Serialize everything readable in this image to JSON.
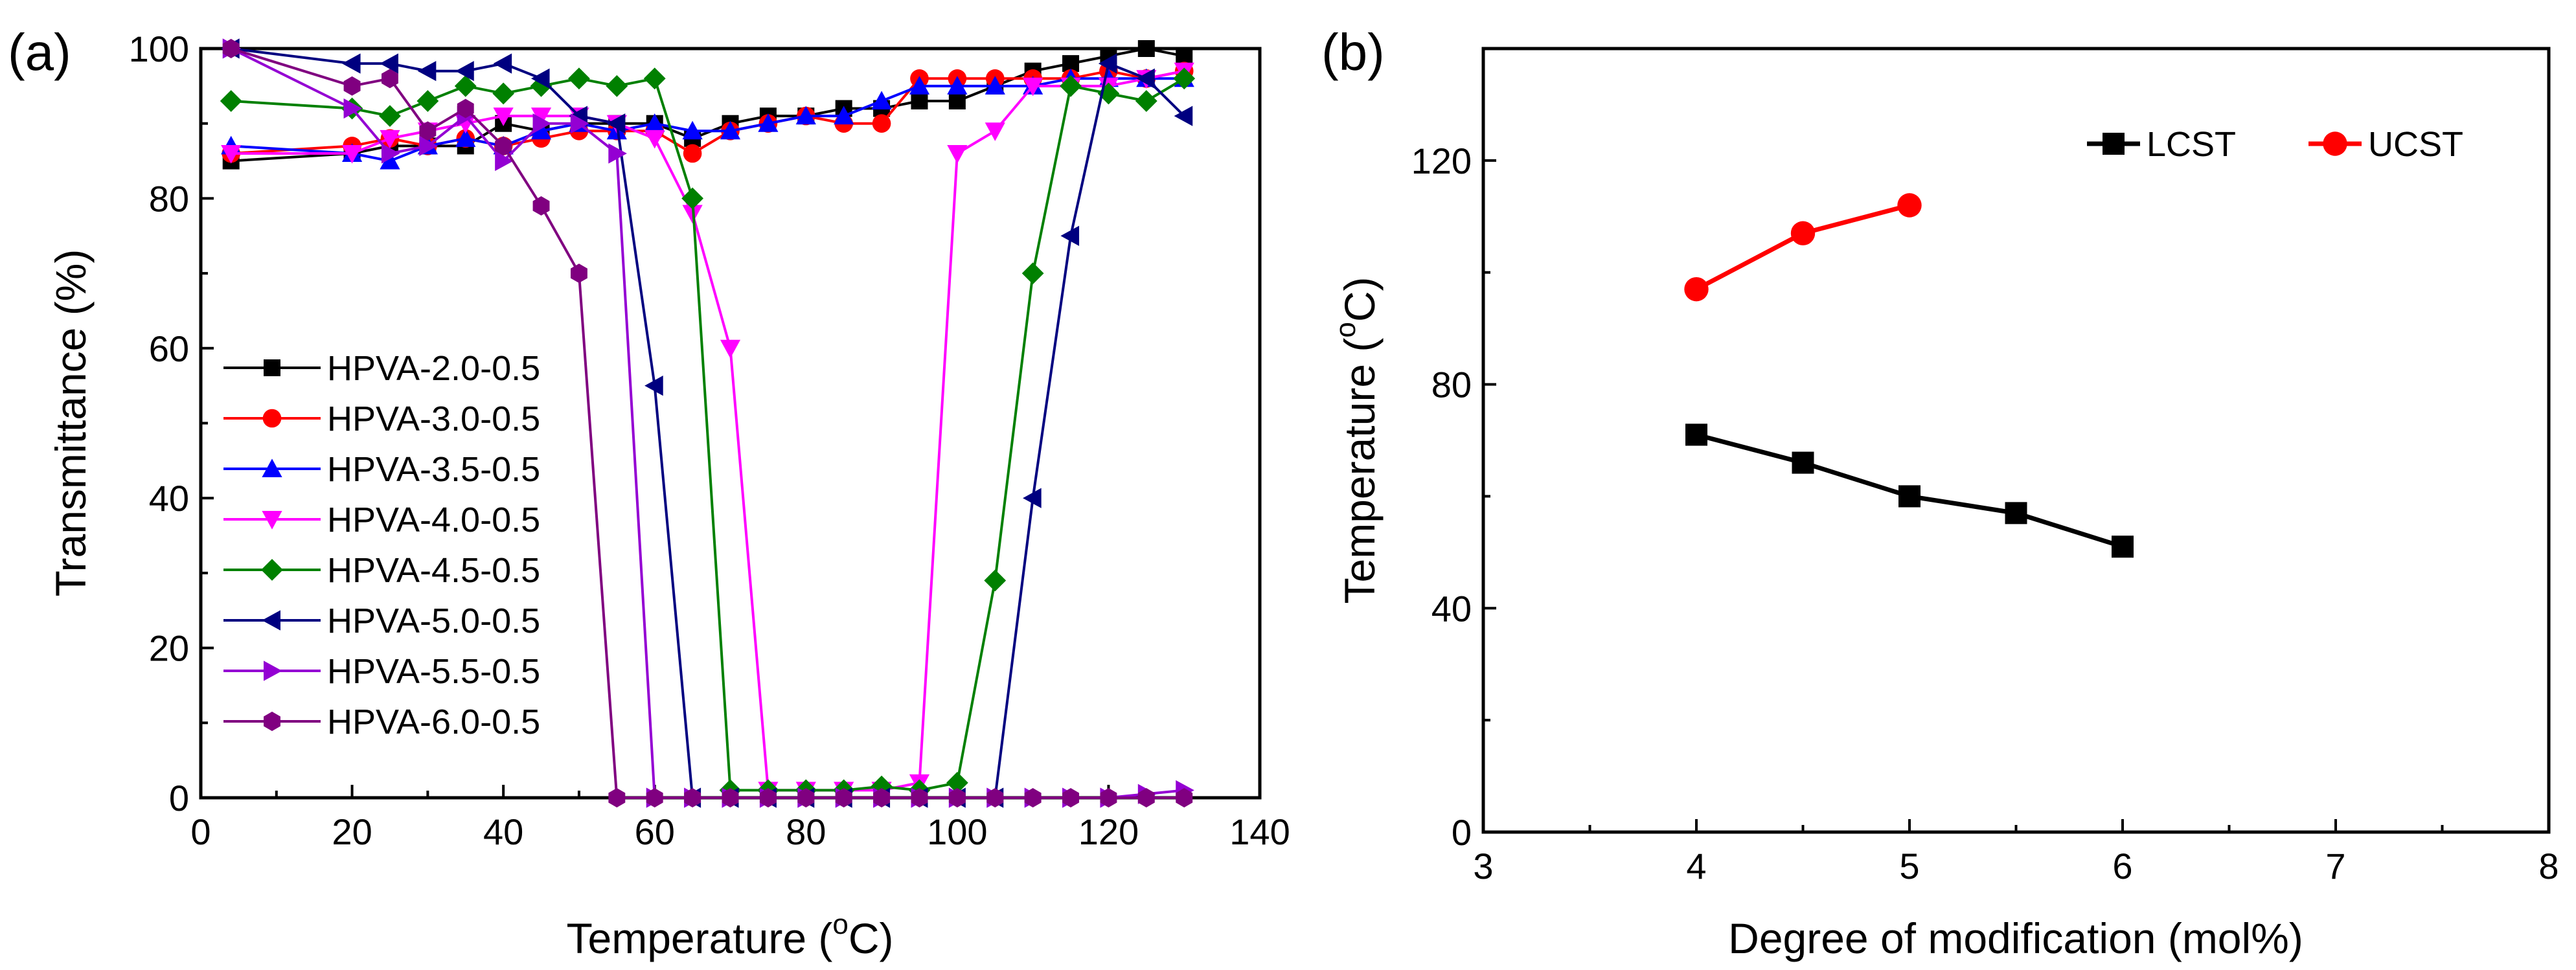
{
  "chart_data": [
    {
      "type": "line",
      "panel_label": "(a)",
      "title": "",
      "xlabel": "Temperature (°C)",
      "xlabel_main": "Temperature (",
      "xlabel_sup": "o",
      "xlabel_unit": "C)",
      "ylabel": "Transmittance (%)",
      "xlim": [
        0,
        140
      ],
      "ylim": [
        0,
        100
      ],
      "xticks": [
        0,
        20,
        40,
        60,
        80,
        100,
        120,
        140
      ],
      "yticks": [
        0,
        20,
        40,
        60,
        80,
        100
      ],
      "grid": false,
      "legend_position": "left-middle",
      "series": [
        {
          "name": "HPVA-2.0-0.5",
          "color": "#000000",
          "marker": "square",
          "x": [
            4,
            20,
            25,
            30,
            35,
            40,
            45,
            50,
            55,
            60,
            65,
            70,
            75,
            80,
            85,
            90,
            95,
            100,
            105,
            110,
            115,
            120,
            125,
            130
          ],
          "y": [
            85,
            86,
            87,
            87,
            87,
            90,
            89,
            90,
            90,
            90,
            88,
            90,
            91,
            91,
            92,
            92,
            93,
            93,
            95,
            97,
            98,
            99,
            100,
            99
          ]
        },
        {
          "name": "HPVA-3.0-0.5",
          "color": "#ff0000",
          "marker": "circle",
          "x": [
            4,
            20,
            25,
            30,
            35,
            40,
            45,
            50,
            55,
            60,
            65,
            70,
            75,
            80,
            85,
            90,
            95,
            100,
            105,
            110,
            115,
            120,
            125,
            130
          ],
          "y": [
            86,
            87,
            88,
            87,
            88,
            87,
            88,
            89,
            89,
            89,
            86,
            89,
            90,
            91,
            90,
            90,
            96,
            96,
            96,
            96,
            96,
            97,
            96,
            97
          ]
        },
        {
          "name": "HPVA-3.5-0.5",
          "color": "#0000ff",
          "marker": "triangle-up",
          "x": [
            4,
            20,
            25,
            30,
            35,
            40,
            45,
            50,
            55,
            60,
            65,
            70,
            75,
            80,
            85,
            90,
            95,
            100,
            105,
            110,
            115,
            120,
            125,
            130
          ],
          "y": [
            87,
            86,
            85,
            87,
            88,
            87,
            89,
            90,
            89,
            90,
            89,
            89,
            90,
            91,
            91,
            93,
            95,
            95,
            95,
            95,
            96,
            96,
            96,
            96
          ]
        },
        {
          "name": "HPVA-4.0-0.5",
          "color": "#ff00ff",
          "marker": "triangle-down",
          "x": [
            4,
            20,
            25,
            30,
            35,
            40,
            45,
            50,
            55,
            60,
            65,
            70,
            75,
            80,
            85,
            90,
            95,
            100,
            105,
            110,
            115,
            120,
            125,
            130
          ],
          "y": [
            86,
            86,
            88,
            89,
            90,
            91,
            91,
            91,
            90,
            88,
            78,
            60,
            1,
            1,
            1,
            1,
            2,
            86,
            89,
            95,
            95,
            95,
            96,
            97
          ]
        },
        {
          "name": "HPVA-4.5-0.5",
          "color": "#008000",
          "marker": "diamond",
          "x": [
            4,
            20,
            25,
            30,
            35,
            40,
            45,
            50,
            55,
            60,
            65,
            70,
            75,
            80,
            85,
            90,
            95,
            100,
            105,
            110,
            115,
            120,
            125,
            130
          ],
          "y": [
            93,
            92,
            91,
            93,
            95,
            94,
            95,
            96,
            95,
            96,
            80,
            1,
            1,
            1,
            1,
            1.5,
            1,
            2,
            29,
            70,
            95,
            94,
            93,
            96
          ]
        },
        {
          "name": "HPVA-5.0-0.5",
          "color": "#000080",
          "marker": "triangle-left",
          "x": [
            4,
            20,
            25,
            30,
            35,
            40,
            45,
            50,
            55,
            60,
            65,
            70,
            75,
            80,
            85,
            90,
            95,
            100,
            105,
            110,
            115,
            120,
            125,
            130
          ],
          "y": [
            100,
            98,
            98,
            97,
            97,
            98,
            96,
            91,
            90,
            55,
            0,
            0,
            0,
            0,
            0,
            0,
            0,
            0,
            0,
            40,
            75,
            98,
            96,
            91
          ]
        },
        {
          "name": "HPVA-5.5-0.5",
          "color": "#9400d3",
          "marker": "triangle-right",
          "x": [
            4,
            20,
            25,
            30,
            35,
            40,
            45,
            50,
            55,
            60,
            65,
            70,
            75,
            80,
            85,
            90,
            95,
            100,
            105,
            110,
            115,
            120,
            125,
            130
          ],
          "y": [
            100,
            92,
            86,
            87,
            91,
            85,
            90,
            90,
            86,
            0,
            0,
            0,
            0,
            0,
            0,
            0,
            0,
            0,
            0,
            0,
            0,
            0,
            0.5,
            1
          ]
        },
        {
          "name": "HPVA-6.0-0.5",
          "color": "#800080",
          "marker": "hexagon",
          "x": [
            4,
            20,
            25,
            30,
            35,
            40,
            45,
            50,
            55,
            60,
            65,
            70,
            75,
            80,
            85,
            90,
            95,
            100,
            105,
            110,
            115,
            120,
            125,
            130
          ],
          "y": [
            100,
            95,
            96,
            89,
            92,
            87,
            79,
            70,
            0,
            0,
            0,
            0,
            0,
            0,
            0,
            0,
            0,
            0,
            0,
            0,
            0,
            0,
            0,
            0
          ]
        }
      ]
    },
    {
      "type": "line",
      "panel_label": "(b)",
      "title": "",
      "xlabel": "Degree of modification (mol%)",
      "ylabel": "Temperature (°C)",
      "ylabel_main": "Temperature (",
      "ylabel_sup": "o",
      "ylabel_unit": "C)",
      "xlim": [
        3,
        8
      ],
      "ylim": [
        0,
        140
      ],
      "xticks": [
        3,
        4,
        5,
        6,
        7,
        8
      ],
      "yticks": [
        0,
        40,
        80,
        120
      ],
      "grid": false,
      "legend_position": "top-right",
      "series": [
        {
          "name": "LCST",
          "color": "#000000",
          "marker": "square",
          "x": [
            4,
            4.5,
            5,
            5.5,
            6
          ],
          "y": [
            71,
            66,
            60,
            57,
            51
          ]
        },
        {
          "name": "UCST",
          "color": "#ff0000",
          "marker": "circle",
          "x": [
            4,
            4.5,
            5
          ],
          "y": [
            97,
            107,
            112
          ]
        }
      ]
    }
  ]
}
